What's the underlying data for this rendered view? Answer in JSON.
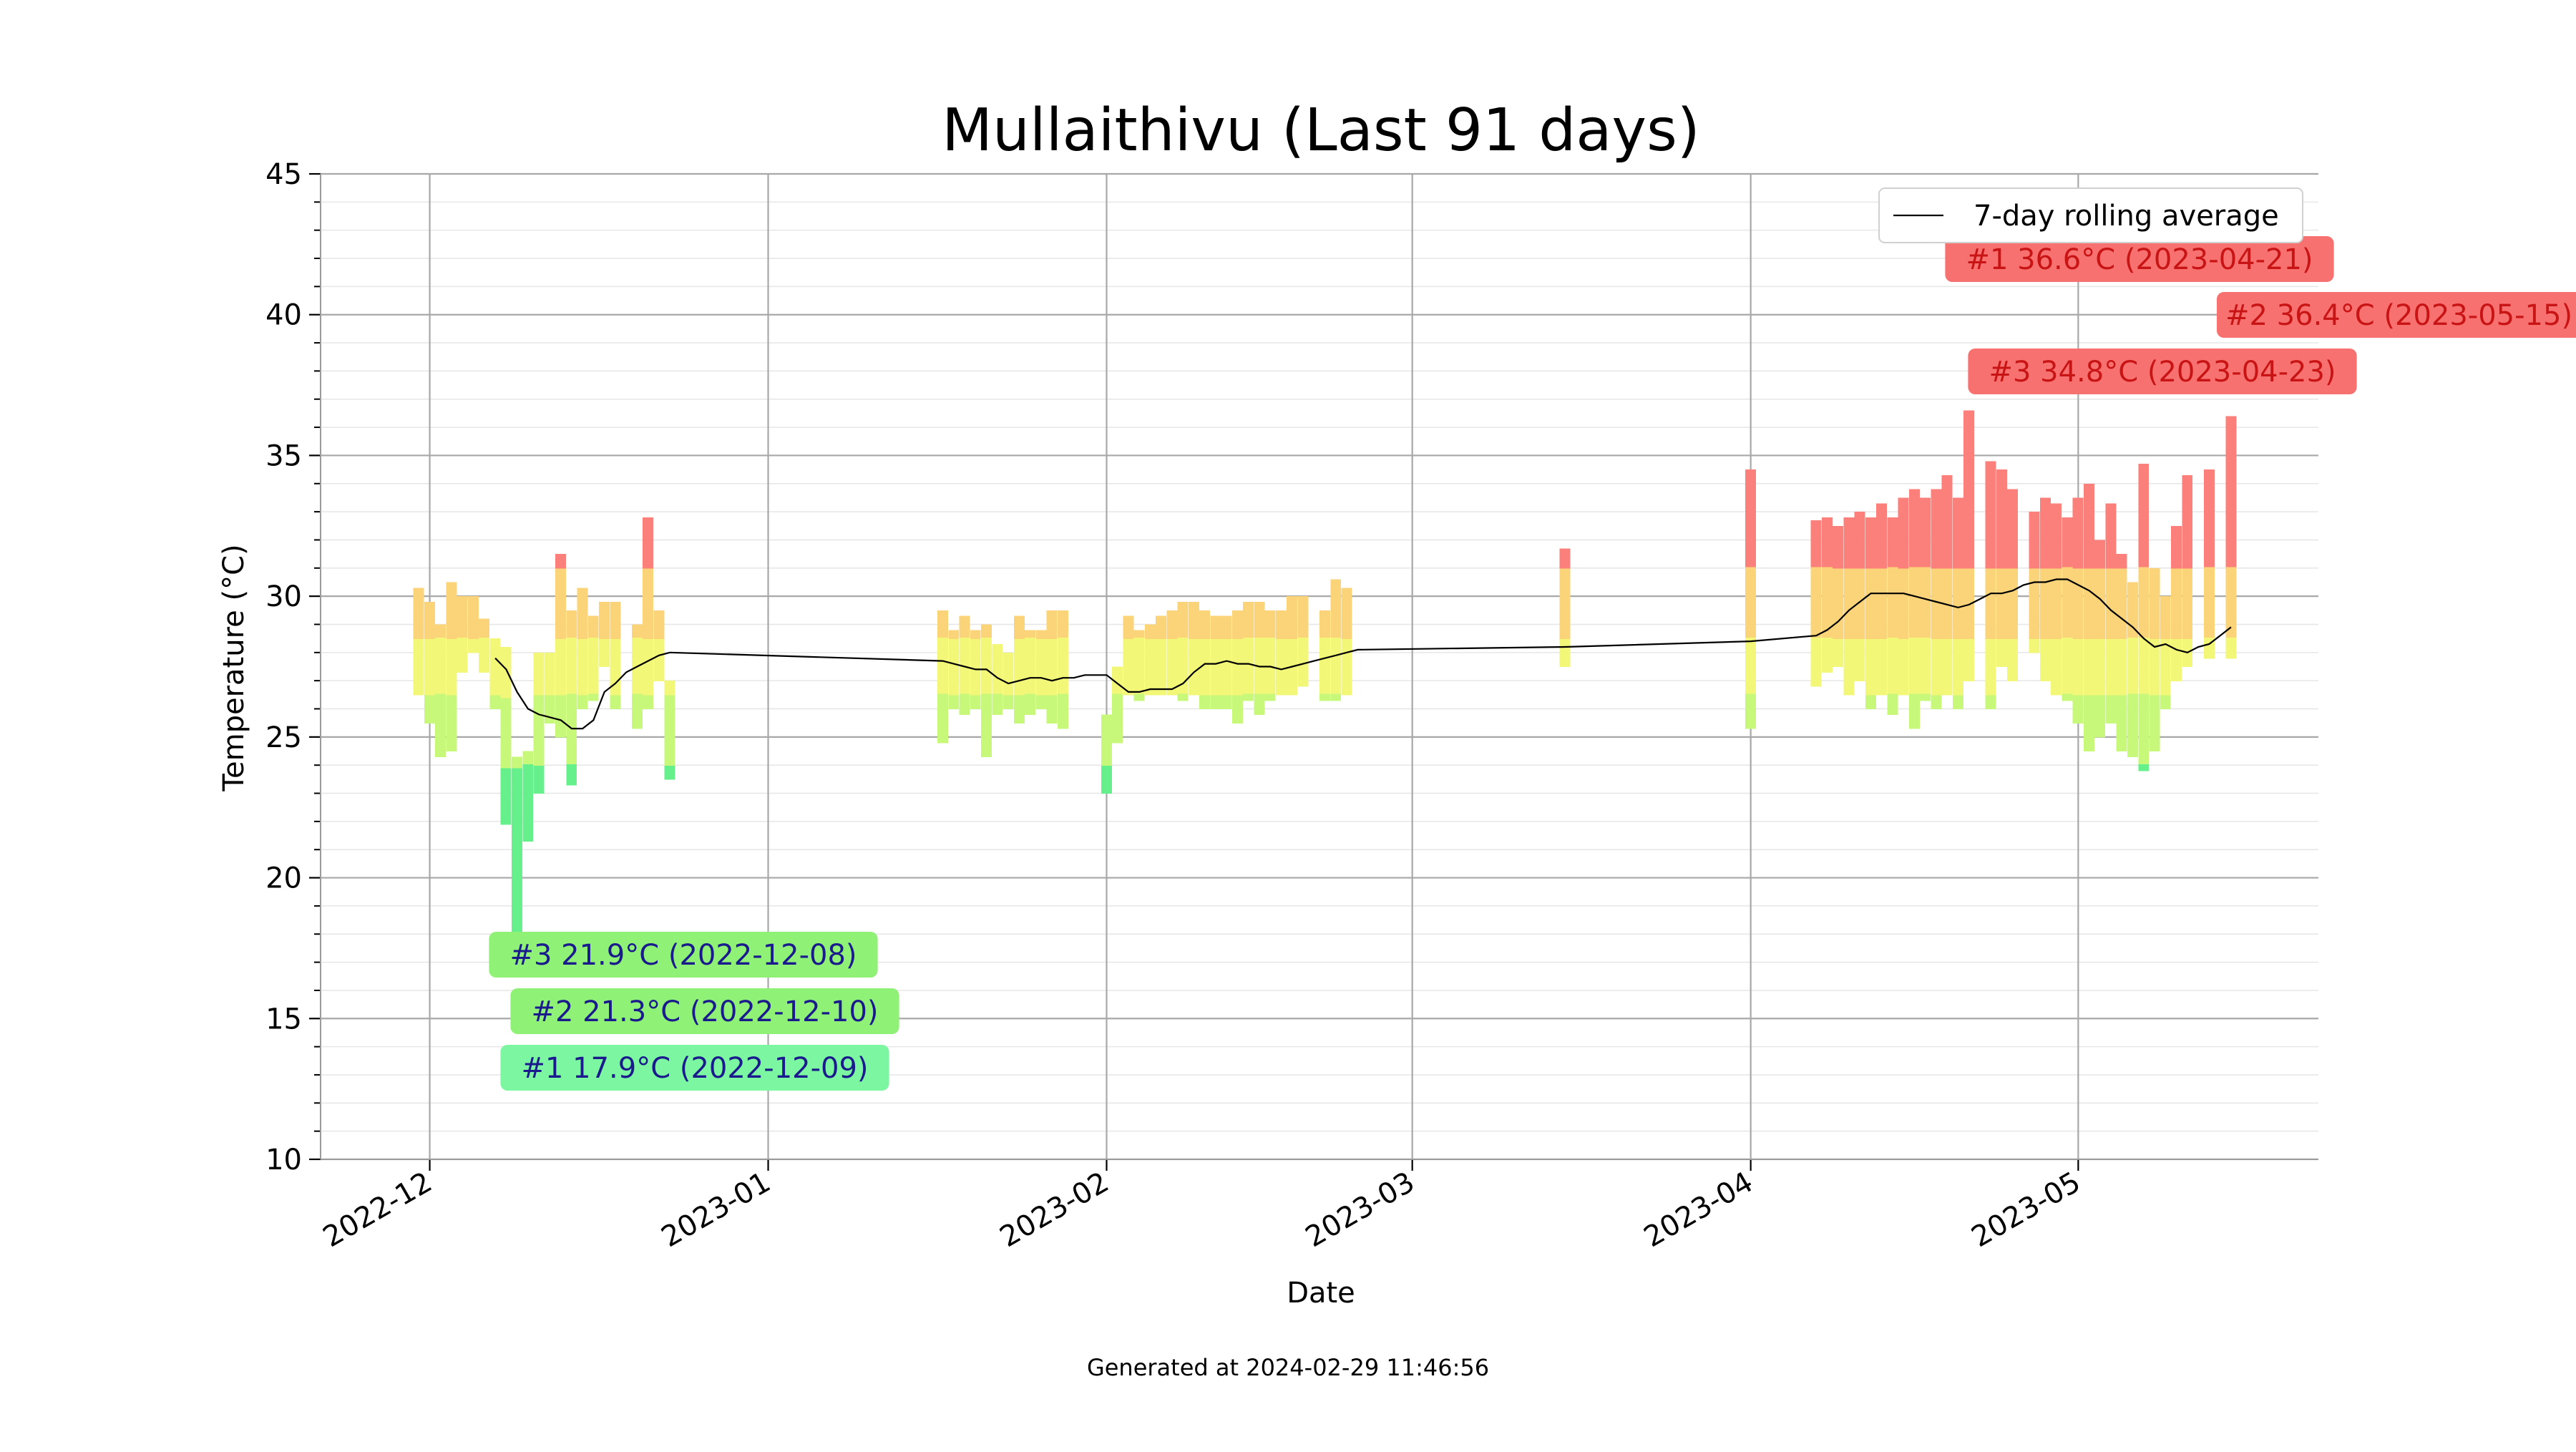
{
  "chart_data": {
    "type": "bar",
    "title": "Mullaithivu (Last 91 days)",
    "xlabel": "Date",
    "ylabel": "Temperature (°C)",
    "ylim": [
      10,
      45
    ],
    "yticks": [
      10,
      15,
      20,
      25,
      30,
      35,
      40,
      45
    ],
    "xlim": [
      "2022-11-21",
      "2023-05-23"
    ],
    "xticks": [
      "2022-12-01",
      "2023-01-01",
      "2023-02-01",
      "2023-03-01",
      "2023-04-01",
      "2023-05-01"
    ],
    "xtick_labels": [
      "2022-12",
      "2023-01",
      "2023-02",
      "2023-03",
      "2023-04",
      "2023-05"
    ],
    "grid": true,
    "legend": {
      "placement": "top-right",
      "entries": [
        "7-day rolling average"
      ]
    },
    "footer": "Generated at 2024-02-29 11:46:56",
    "daily_ranges": [
      {
        "date": "2022-11-30",
        "min": 26.5,
        "max": 30.3
      },
      {
        "date": "2022-12-01",
        "min": 25.5,
        "max": 29.8
      },
      {
        "date": "2022-12-02",
        "min": 24.3,
        "max": 29.0
      },
      {
        "date": "2022-12-03",
        "min": 24.5,
        "max": 30.5
      },
      {
        "date": "2022-12-04",
        "min": 27.3,
        "max": 30.0
      },
      {
        "date": "2022-12-05",
        "min": 28.0,
        "max": 30.0
      },
      {
        "date": "2022-12-06",
        "min": 27.3,
        "max": 29.2
      },
      {
        "date": "2022-12-07",
        "min": 26.0,
        "max": 28.5
      },
      {
        "date": "2022-12-08",
        "min": 21.9,
        "max": 28.2
      },
      {
        "date": "2022-12-09",
        "min": 17.9,
        "max": 24.3
      },
      {
        "date": "2022-12-10",
        "min": 21.3,
        "max": 24.5
      },
      {
        "date": "2022-12-11",
        "min": 23.0,
        "max": 28.0
      },
      {
        "date": "2022-12-12",
        "min": 25.5,
        "max": 28.0
      },
      {
        "date": "2022-12-13",
        "min": 25.0,
        "max": 31.5
      },
      {
        "date": "2022-12-14",
        "min": 23.3,
        "max": 29.5
      },
      {
        "date": "2022-12-15",
        "min": 26.0,
        "max": 30.3
      },
      {
        "date": "2022-12-16",
        "min": 26.3,
        "max": 29.3
      },
      {
        "date": "2022-12-17",
        "min": 27.5,
        "max": 29.8
      },
      {
        "date": "2022-12-18",
        "min": 26.0,
        "max": 29.8
      },
      {
        "date": "2022-12-20",
        "min": 25.3,
        "max": 29.0
      },
      {
        "date": "2022-12-21",
        "min": 26.0,
        "max": 32.8
      },
      {
        "date": "2022-12-22",
        "min": 27.0,
        "max": 29.5
      },
      {
        "date": "2022-12-23",
        "min": 23.5,
        "max": 27.0
      },
      {
        "date": "2023-01-17",
        "min": 24.8,
        "max": 29.5
      },
      {
        "date": "2023-01-18",
        "min": 26.0,
        "max": 28.8
      },
      {
        "date": "2023-01-19",
        "min": 25.8,
        "max": 29.3
      },
      {
        "date": "2023-01-20",
        "min": 26.0,
        "max": 28.8
      },
      {
        "date": "2023-01-21",
        "min": 24.3,
        "max": 29.0
      },
      {
        "date": "2023-01-22",
        "min": 25.8,
        "max": 28.3
      },
      {
        "date": "2023-01-23",
        "min": 26.0,
        "max": 28.0
      },
      {
        "date": "2023-01-24",
        "min": 25.5,
        "max": 29.3
      },
      {
        "date": "2023-01-25",
        "min": 25.8,
        "max": 28.8
      },
      {
        "date": "2023-01-26",
        "min": 26.0,
        "max": 28.8
      },
      {
        "date": "2023-01-27",
        "min": 25.5,
        "max": 29.5
      },
      {
        "date": "2023-01-28",
        "min": 25.3,
        "max": 29.5
      },
      {
        "date": "2023-02-01",
        "min": 23.0,
        "max": 25.8
      },
      {
        "date": "2023-02-02",
        "min": 24.8,
        "max": 27.5
      },
      {
        "date": "2023-02-03",
        "min": 26.5,
        "max": 29.3
      },
      {
        "date": "2023-02-04",
        "min": 26.3,
        "max": 28.8
      },
      {
        "date": "2023-02-05",
        "min": 26.5,
        "max": 29.0
      },
      {
        "date": "2023-02-06",
        "min": 26.5,
        "max": 29.3
      },
      {
        "date": "2023-02-07",
        "min": 26.5,
        "max": 29.5
      },
      {
        "date": "2023-02-08",
        "min": 26.3,
        "max": 29.8
      },
      {
        "date": "2023-02-09",
        "min": 26.5,
        "max": 29.8
      },
      {
        "date": "2023-02-10",
        "min": 26.0,
        "max": 29.5
      },
      {
        "date": "2023-02-11",
        "min": 26.0,
        "max": 29.3
      },
      {
        "date": "2023-02-12",
        "min": 26.0,
        "max": 29.3
      },
      {
        "date": "2023-02-13",
        "min": 25.5,
        "max": 29.5
      },
      {
        "date": "2023-02-14",
        "min": 26.3,
        "max": 29.8
      },
      {
        "date": "2023-02-15",
        "min": 25.8,
        "max": 29.8
      },
      {
        "date": "2023-02-16",
        "min": 26.3,
        "max": 29.5
      },
      {
        "date": "2023-02-17",
        "min": 26.5,
        "max": 29.5
      },
      {
        "date": "2023-02-18",
        "min": 26.5,
        "max": 30.0
      },
      {
        "date": "2023-02-19",
        "min": 26.8,
        "max": 30.0
      },
      {
        "date": "2023-02-21",
        "min": 26.3,
        "max": 29.5
      },
      {
        "date": "2023-02-22",
        "min": 26.3,
        "max": 30.6
      },
      {
        "date": "2023-02-23",
        "min": 26.5,
        "max": 30.3
      },
      {
        "date": "2023-03-15",
        "min": 27.5,
        "max": 31.7
      },
      {
        "date": "2023-04-01",
        "min": 25.3,
        "max": 34.5
      },
      {
        "date": "2023-04-07",
        "min": 26.8,
        "max": 32.7
      },
      {
        "date": "2023-04-08",
        "min": 27.3,
        "max": 32.8
      },
      {
        "date": "2023-04-09",
        "min": 27.5,
        "max": 32.5
      },
      {
        "date": "2023-04-10",
        "min": 26.5,
        "max": 32.8
      },
      {
        "date": "2023-04-11",
        "min": 27.0,
        "max": 33.0
      },
      {
        "date": "2023-04-12",
        "min": 26.0,
        "max": 32.8
      },
      {
        "date": "2023-04-13",
        "min": 26.5,
        "max": 33.3
      },
      {
        "date": "2023-04-14",
        "min": 25.8,
        "max": 32.8
      },
      {
        "date": "2023-04-15",
        "min": 26.5,
        "max": 33.5
      },
      {
        "date": "2023-04-16",
        "min": 25.3,
        "max": 33.8
      },
      {
        "date": "2023-04-17",
        "min": 26.3,
        "max": 33.5
      },
      {
        "date": "2023-04-18",
        "min": 26.0,
        "max": 33.8
      },
      {
        "date": "2023-04-19",
        "min": 26.5,
        "max": 34.3
      },
      {
        "date": "2023-04-20",
        "min": 26.0,
        "max": 33.5
      },
      {
        "date": "2023-04-21",
        "min": 27.0,
        "max": 36.6
      },
      {
        "date": "2023-04-23",
        "min": 26.0,
        "max": 34.8
      },
      {
        "date": "2023-04-24",
        "min": 27.5,
        "max": 34.5
      },
      {
        "date": "2023-04-25",
        "min": 27.0,
        "max": 33.8
      },
      {
        "date": "2023-04-27",
        "min": 28.0,
        "max": 33.0
      },
      {
        "date": "2023-04-28",
        "min": 27.0,
        "max": 33.5
      },
      {
        "date": "2023-04-29",
        "min": 26.5,
        "max": 33.3
      },
      {
        "date": "2023-04-30",
        "min": 26.3,
        "max": 32.8
      },
      {
        "date": "2023-05-01",
        "min": 25.5,
        "max": 33.5
      },
      {
        "date": "2023-05-02",
        "min": 24.5,
        "max": 34.0
      },
      {
        "date": "2023-05-03",
        "min": 25.0,
        "max": 32.0
      },
      {
        "date": "2023-05-04",
        "min": 25.5,
        "max": 33.3
      },
      {
        "date": "2023-05-05",
        "min": 24.5,
        "max": 31.5
      },
      {
        "date": "2023-05-06",
        "min": 24.3,
        "max": 30.5
      },
      {
        "date": "2023-05-07",
        "min": 23.8,
        "max": 34.7
      },
      {
        "date": "2023-05-08",
        "min": 24.5,
        "max": 31.0
      },
      {
        "date": "2023-05-09",
        "min": 26.0,
        "max": 30.0
      },
      {
        "date": "2023-05-10",
        "min": 27.0,
        "max": 32.5
      },
      {
        "date": "2023-05-11",
        "min": 27.5,
        "max": 34.3
      },
      {
        "date": "2023-05-13",
        "min": 27.8,
        "max": 34.5
      },
      {
        "date": "2023-05-15",
        "min": 27.8,
        "max": 36.4
      }
    ],
    "rolling_average": {
      "name": "7-day rolling average",
      "points": [
        {
          "date": "2022-12-07",
          "value": 27.8
        },
        {
          "date": "2022-12-08",
          "value": 27.4
        },
        {
          "date": "2022-12-09",
          "value": 26.6
        },
        {
          "date": "2022-12-10",
          "value": 26.0
        },
        {
          "date": "2022-12-11",
          "value": 25.8
        },
        {
          "date": "2022-12-12",
          "value": 25.7
        },
        {
          "date": "2022-12-13",
          "value": 25.6
        },
        {
          "date": "2022-12-14",
          "value": 25.3
        },
        {
          "date": "2022-12-15",
          "value": 25.3
        },
        {
          "date": "2022-12-16",
          "value": 25.6
        },
        {
          "date": "2022-12-17",
          "value": 26.6
        },
        {
          "date": "2022-12-18",
          "value": 26.9
        },
        {
          "date": "2022-12-19",
          "value": 27.3
        },
        {
          "date": "2022-12-20",
          "value": 27.5
        },
        {
          "date": "2022-12-21",
          "value": 27.7
        },
        {
          "date": "2022-12-22",
          "value": 27.9
        },
        {
          "date": "2022-12-23",
          "value": 28.0
        },
        {
          "date": "2023-01-17",
          "value": 27.7
        },
        {
          "date": "2023-01-18",
          "value": 27.6
        },
        {
          "date": "2023-01-19",
          "value": 27.5
        },
        {
          "date": "2023-01-20",
          "value": 27.4
        },
        {
          "date": "2023-01-21",
          "value": 27.4
        },
        {
          "date": "2023-01-22",
          "value": 27.1
        },
        {
          "date": "2023-01-23",
          "value": 26.9
        },
        {
          "date": "2023-01-24",
          "value": 27.0
        },
        {
          "date": "2023-01-25",
          "value": 27.1
        },
        {
          "date": "2023-01-26",
          "value": 27.1
        },
        {
          "date": "2023-01-27",
          "value": 27.0
        },
        {
          "date": "2023-01-28",
          "value": 27.1
        },
        {
          "date": "2023-01-29",
          "value": 27.1
        },
        {
          "date": "2023-01-30",
          "value": 27.2
        },
        {
          "date": "2023-01-31",
          "value": 27.2
        },
        {
          "date": "2023-02-01",
          "value": 27.2
        },
        {
          "date": "2023-02-02",
          "value": 26.9
        },
        {
          "date": "2023-02-03",
          "value": 26.6
        },
        {
          "date": "2023-02-04",
          "value": 26.6
        },
        {
          "date": "2023-02-05",
          "value": 26.7
        },
        {
          "date": "2023-02-06",
          "value": 26.7
        },
        {
          "date": "2023-02-07",
          "value": 26.7
        },
        {
          "date": "2023-02-08",
          "value": 26.9
        },
        {
          "date": "2023-02-09",
          "value": 27.3
        },
        {
          "date": "2023-02-10",
          "value": 27.6
        },
        {
          "date": "2023-02-11",
          "value": 27.6
        },
        {
          "date": "2023-02-12",
          "value": 27.7
        },
        {
          "date": "2023-02-13",
          "value": 27.6
        },
        {
          "date": "2023-02-14",
          "value": 27.6
        },
        {
          "date": "2023-02-15",
          "value": 27.5
        },
        {
          "date": "2023-02-16",
          "value": 27.5
        },
        {
          "date": "2023-02-17",
          "value": 27.4
        },
        {
          "date": "2023-02-18",
          "value": 27.5
        },
        {
          "date": "2023-02-19",
          "value": 27.6
        },
        {
          "date": "2023-02-20",
          "value": 27.7
        },
        {
          "date": "2023-02-21",
          "value": 27.8
        },
        {
          "date": "2023-02-22",
          "value": 27.9
        },
        {
          "date": "2023-02-23",
          "value": 28.0
        },
        {
          "date": "2023-02-24",
          "value": 28.1
        },
        {
          "date": "2023-03-15",
          "value": 28.2
        },
        {
          "date": "2023-04-01",
          "value": 28.4
        },
        {
          "date": "2023-04-07",
          "value": 28.6
        },
        {
          "date": "2023-04-08",
          "value": 28.8
        },
        {
          "date": "2023-04-09",
          "value": 29.1
        },
        {
          "date": "2023-04-10",
          "value": 29.5
        },
        {
          "date": "2023-04-11",
          "value": 29.8
        },
        {
          "date": "2023-04-12",
          "value": 30.1
        },
        {
          "date": "2023-04-13",
          "value": 30.1
        },
        {
          "date": "2023-04-14",
          "value": 30.1
        },
        {
          "date": "2023-04-15",
          "value": 30.1
        },
        {
          "date": "2023-04-16",
          "value": 30.0
        },
        {
          "date": "2023-04-17",
          "value": 29.9
        },
        {
          "date": "2023-04-18",
          "value": 29.8
        },
        {
          "date": "2023-04-19",
          "value": 29.7
        },
        {
          "date": "2023-04-20",
          "value": 29.6
        },
        {
          "date": "2023-04-21",
          "value": 29.7
        },
        {
          "date": "2023-04-22",
          "value": 29.9
        },
        {
          "date": "2023-04-23",
          "value": 30.1
        },
        {
          "date": "2023-04-24",
          "value": 30.1
        },
        {
          "date": "2023-04-25",
          "value": 30.2
        },
        {
          "date": "2023-04-26",
          "value": 30.4
        },
        {
          "date": "2023-04-27",
          "value": 30.5
        },
        {
          "date": "2023-04-28",
          "value": 30.5
        },
        {
          "date": "2023-04-29",
          "value": 30.6
        },
        {
          "date": "2023-04-30",
          "value": 30.6
        },
        {
          "date": "2023-05-01",
          "value": 30.4
        },
        {
          "date": "2023-05-02",
          "value": 30.2
        },
        {
          "date": "2023-05-03",
          "value": 29.9
        },
        {
          "date": "2023-05-04",
          "value": 29.5
        },
        {
          "date": "2023-05-05",
          "value": 29.2
        },
        {
          "date": "2023-05-06",
          "value": 28.9
        },
        {
          "date": "2023-05-07",
          "value": 28.5
        },
        {
          "date": "2023-05-08",
          "value": 28.2
        },
        {
          "date": "2023-05-09",
          "value": 28.3
        },
        {
          "date": "2023-05-10",
          "value": 28.1
        },
        {
          "date": "2023-05-11",
          "value": 28.0
        },
        {
          "date": "2023-05-12",
          "value": 28.2
        },
        {
          "date": "2023-05-13",
          "value": 28.3
        },
        {
          "date": "2023-05-14",
          "value": 28.6
        },
        {
          "date": "2023-05-15",
          "value": 28.9
        }
      ]
    },
    "annotations": {
      "highs": [
        {
          "label": "#1 36.6°C (2023-04-21)",
          "value": 36.6,
          "date": "2023-04-21",
          "color": "#f87171"
        },
        {
          "label": "#2 36.4°C (2023-05-15)",
          "value": 36.4,
          "date": "2023-05-15",
          "color": "#f87171"
        },
        {
          "label": "#3 34.8°C (2023-04-23)",
          "value": 34.8,
          "date": "2023-04-23",
          "color": "#f87171"
        }
      ],
      "lows": [
        {
          "label": "#3 21.9°C (2022-12-08)",
          "value": 21.9,
          "date": "2022-12-08",
          "color": "#8ff276"
        },
        {
          "label": "#2 21.3°C (2022-12-10)",
          "value": 21.3,
          "date": "2022-12-10",
          "color": "#8ff276"
        },
        {
          "label": "#1 17.9°C (2022-12-09)",
          "value": 17.9,
          "date": "2022-12-09",
          "color": "#7cf6a1"
        }
      ],
      "high_text_color": "#c81414",
      "low_text_color": "#1a1a8c"
    },
    "colors": {
      "cold": "#66f08c",
      "cool": "#c8f87a",
      "mild": "#f2f778",
      "warm": "#fbd47a",
      "hot": "#fb7f7a",
      "rolling_line": "#000000"
    }
  }
}
